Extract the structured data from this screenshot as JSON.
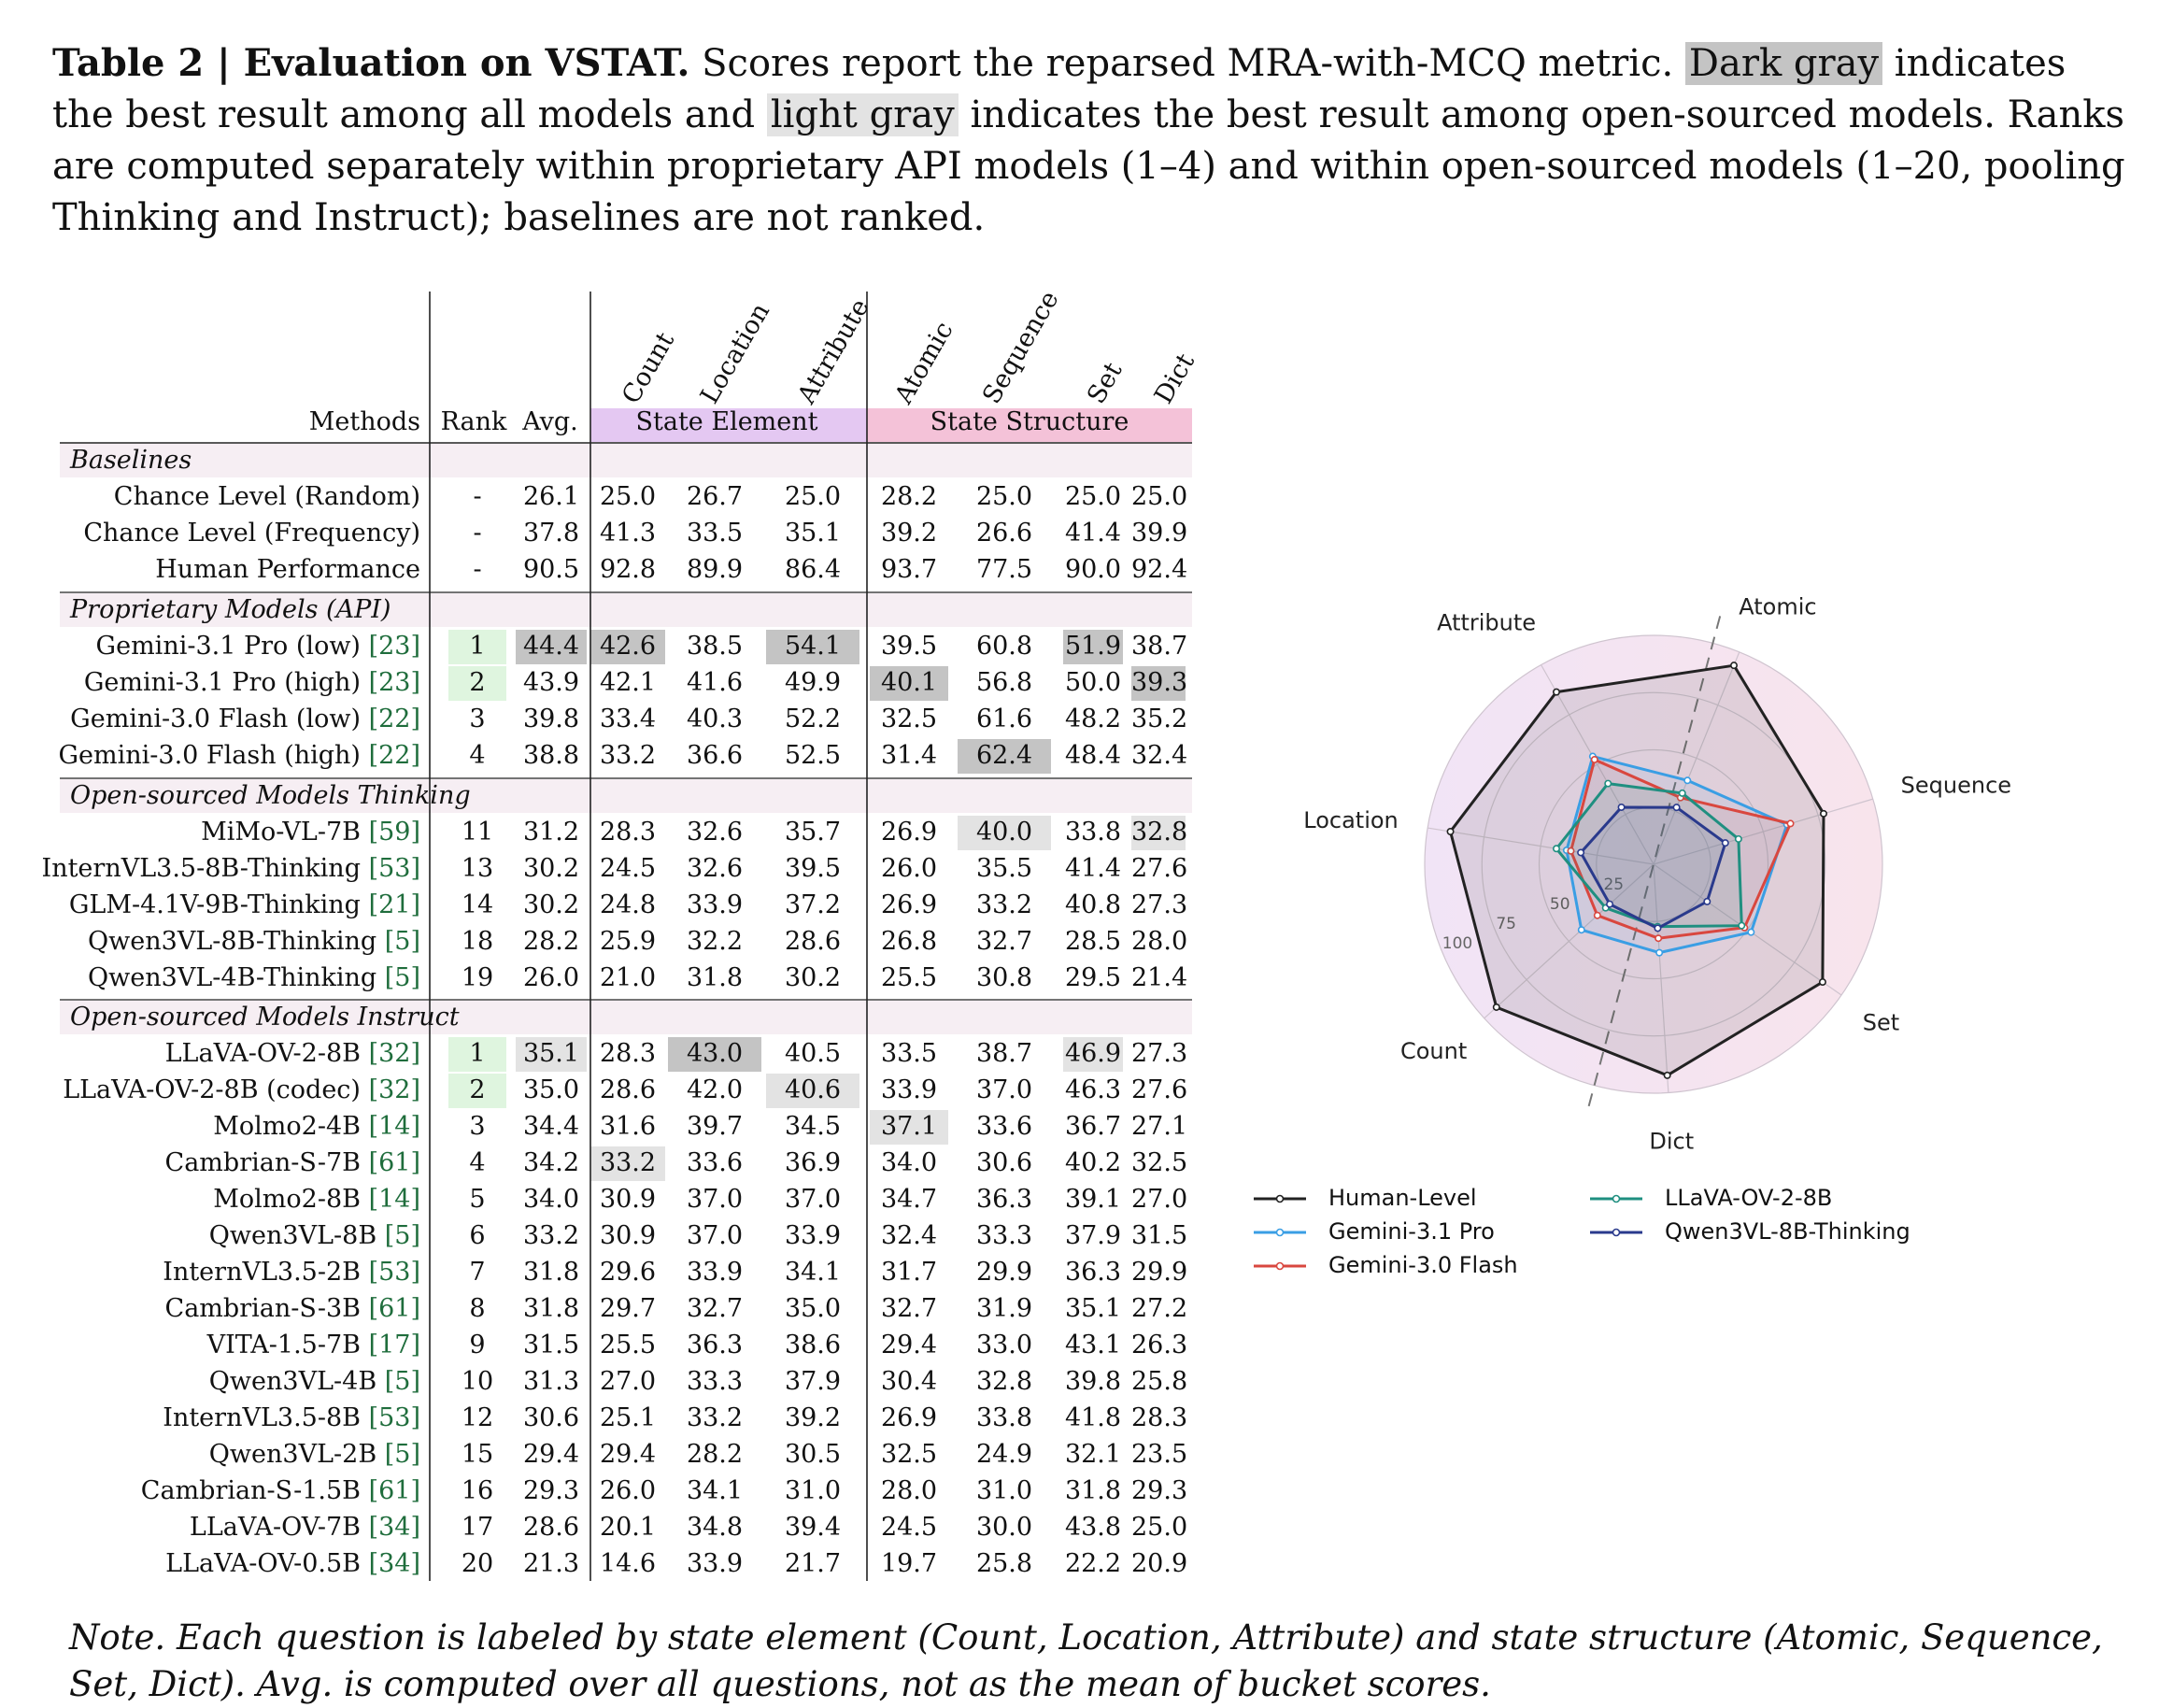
{
  "caption": {
    "label": "Table 2 | ",
    "title": "Evaluation on VSTAT.",
    "part1": " Scores report the reparsed MRA-with-MCQ metric. ",
    "dark_term": "Dark gray",
    "part2": " indicates the best result among all models and ",
    "light_term": "light gray",
    "part3": " indicates the best result among open-sourced models. Ranks are computed separately within proprietary API models (1–4) and within open-sourced models (1–20, pooling Thinking and Instruct); baselines are not ranked."
  },
  "table": {
    "header": {
      "methods": "Methods",
      "rank": "Rank",
      "avg": "Avg.",
      "group_element": "State Element",
      "group_structure": "State Structure",
      "element_columns": [
        "Count",
        "Location",
        "Attribute"
      ],
      "structure_columns": [
        "Atomic",
        "Sequence",
        "Set",
        "Dict"
      ]
    },
    "sections": [
      {
        "title": "Baselines",
        "rows": [
          {
            "method": "Chance Level (Random)",
            "cite": "",
            "rank": "-",
            "avg": "26.1",
            "scores": [
              "25.0",
              "26.7",
              "25.0",
              "28.2",
              "25.0",
              "25.0",
              "25.0"
            ]
          },
          {
            "method": "Chance Level (Frequency)",
            "cite": "",
            "rank": "-",
            "avg": "37.8",
            "scores": [
              "41.3",
              "33.5",
              "35.1",
              "39.2",
              "26.6",
              "41.4",
              "39.9"
            ]
          },
          {
            "method": "Human Performance",
            "cite": "",
            "rank": "-",
            "avg": "90.5",
            "scores": [
              "92.8",
              "89.9",
              "86.4",
              "93.7",
              "77.5",
              "90.0",
              "92.4"
            ]
          }
        ]
      },
      {
        "title": "Proprietary Models (API)",
        "rows": [
          {
            "method": "Gemini-3.1 Pro (low) ",
            "cite": "[23]",
            "rank": "1",
            "avg": "44.4",
            "scores": [
              "42.6",
              "38.5",
              "54.1",
              "39.5",
              "60.8",
              "51.9",
              "38.7"
            ]
          },
          {
            "method": "Gemini-3.1 Pro (high) ",
            "cite": "[23]",
            "rank": "2",
            "avg": "43.9",
            "scores": [
              "42.1",
              "41.6",
              "49.9",
              "40.1",
              "56.8",
              "50.0",
              "39.3"
            ]
          },
          {
            "method": "Gemini-3.0 Flash (low) ",
            "cite": "[22]",
            "rank": "3",
            "avg": "39.8",
            "scores": [
              "33.4",
              "40.3",
              "52.2",
              "32.5",
              "61.6",
              "48.2",
              "35.2"
            ]
          },
          {
            "method": "Gemini-3.0 Flash (high) ",
            "cite": "[22]",
            "rank": "4",
            "avg": "38.8",
            "scores": [
              "33.2",
              "36.6",
              "52.5",
              "31.4",
              "62.4",
              "48.4",
              "32.4"
            ]
          }
        ]
      },
      {
        "title": "Open-sourced Models Thinking",
        "rows": [
          {
            "method": "MiMo-VL-7B ",
            "cite": "[59]",
            "rank": "11",
            "avg": "31.2",
            "scores": [
              "28.3",
              "32.6",
              "35.7",
              "26.9",
              "40.0",
              "33.8",
              "32.8"
            ]
          },
          {
            "method": "InternVL3.5-8B-Thinking ",
            "cite": "[53]",
            "rank": "13",
            "avg": "30.2",
            "scores": [
              "24.5",
              "32.6",
              "39.5",
              "26.0",
              "35.5",
              "41.4",
              "27.6"
            ]
          },
          {
            "method": "GLM-4.1V-9B-Thinking ",
            "cite": "[21]",
            "rank": "14",
            "avg": "30.2",
            "scores": [
              "24.8",
              "33.9",
              "37.2",
              "26.9",
              "33.2",
              "40.8",
              "27.3"
            ]
          },
          {
            "method": "Qwen3VL-8B-Thinking ",
            "cite": "[5]",
            "rank": "18",
            "avg": "28.2",
            "scores": [
              "25.9",
              "32.2",
              "28.6",
              "26.8",
              "32.7",
              "28.5",
              "28.0"
            ]
          },
          {
            "method": "Qwen3VL-4B-Thinking ",
            "cite": "[5]",
            "rank": "19",
            "avg": "26.0",
            "scores": [
              "21.0",
              "31.8",
              "30.2",
              "25.5",
              "30.8",
              "29.5",
              "21.4"
            ]
          }
        ]
      },
      {
        "title": "Open-sourced Models Instruct",
        "rows": [
          {
            "method": "LLaVA-OV-2-8B ",
            "cite": "[32]",
            "rank": "1",
            "avg": "35.1",
            "scores": [
              "28.3",
              "43.0",
              "40.5",
              "33.5",
              "38.7",
              "46.9",
              "27.3"
            ]
          },
          {
            "method": "LLaVA-OV-2-8B (codec) ",
            "cite": "[32]",
            "rank": "2",
            "avg": "35.0",
            "scores": [
              "28.6",
              "42.0",
              "40.6",
              "33.9",
              "37.0",
              "46.3",
              "27.6"
            ]
          },
          {
            "method": "Molmo2-4B ",
            "cite": "[14]",
            "rank": "3",
            "avg": "34.4",
            "scores": [
              "31.6",
              "39.7",
              "34.5",
              "37.1",
              "33.6",
              "36.7",
              "27.1"
            ]
          },
          {
            "method": "Cambrian-S-7B ",
            "cite": "[61]",
            "rank": "4",
            "avg": "34.2",
            "scores": [
              "33.2",
              "33.6",
              "36.9",
              "34.0",
              "30.6",
              "40.2",
              "32.5"
            ]
          },
          {
            "method": "Molmo2-8B ",
            "cite": "[14]",
            "rank": "5",
            "avg": "34.0",
            "scores": [
              "30.9",
              "37.0",
              "37.0",
              "34.7",
              "36.3",
              "39.1",
              "27.0"
            ]
          },
          {
            "method": "Qwen3VL-8B ",
            "cite": "[5]",
            "rank": "6",
            "avg": "33.2",
            "scores": [
              "30.9",
              "37.0",
              "33.9",
              "32.4",
              "33.3",
              "37.9",
              "31.5"
            ]
          },
          {
            "method": "InternVL3.5-2B ",
            "cite": "[53]",
            "rank": "7",
            "avg": "31.8",
            "scores": [
              "29.6",
              "33.9",
              "34.1",
              "31.7",
              "29.9",
              "36.3",
              "29.9"
            ]
          },
          {
            "method": "Cambrian-S-3B ",
            "cite": "[61]",
            "rank": "8",
            "avg": "31.8",
            "scores": [
              "29.7",
              "32.7",
              "35.0",
              "32.7",
              "31.9",
              "35.1",
              "27.2"
            ]
          },
          {
            "method": "VITA-1.5-7B ",
            "cite": "[17]",
            "rank": "9",
            "avg": "31.5",
            "scores": [
              "25.5",
              "36.3",
              "38.6",
              "29.4",
              "33.0",
              "43.1",
              "26.3"
            ]
          },
          {
            "method": "Qwen3VL-4B ",
            "cite": "[5]",
            "rank": "10",
            "avg": "31.3",
            "scores": [
              "27.0",
              "33.3",
              "37.9",
              "30.4",
              "32.8",
              "39.8",
              "25.8"
            ]
          },
          {
            "method": "InternVL3.5-8B ",
            "cite": "[53]",
            "rank": "12",
            "avg": "30.6",
            "scores": [
              "25.1",
              "33.2",
              "39.2",
              "26.9",
              "33.8",
              "41.8",
              "28.3"
            ]
          },
          {
            "method": "Qwen3VL-2B ",
            "cite": "[5]",
            "rank": "15",
            "avg": "29.4",
            "scores": [
              "29.4",
              "28.2",
              "30.5",
              "32.5",
              "24.9",
              "32.1",
              "23.5"
            ]
          },
          {
            "method": "Cambrian-S-1.5B ",
            "cite": "[61]",
            "rank": "16",
            "avg": "29.3",
            "scores": [
              "26.0",
              "34.1",
              "31.0",
              "28.0",
              "31.0",
              "31.8",
              "29.3"
            ]
          },
          {
            "method": "LLaVA-OV-7B ",
            "cite": "[34]",
            "rank": "17",
            "avg": "28.6",
            "scores": [
              "20.1",
              "34.8",
              "39.4",
              "24.5",
              "30.0",
              "43.8",
              "25.0"
            ]
          },
          {
            "method": "LLaVA-OV-0.5B ",
            "cite": "[34]",
            "rank": "20",
            "avg": "21.3",
            "scores": [
              "14.6",
              "33.9",
              "21.7",
              "19.7",
              "25.8",
              "22.2",
              "20.9"
            ]
          }
        ]
      }
    ]
  },
  "chart_data": {
    "type": "radar",
    "axes": [
      "Atomic",
      "Sequence",
      "Set",
      "Dict",
      "Count",
      "Location",
      "Attribute"
    ],
    "rlim": [
      0,
      100
    ],
    "radial_ticks": [
      "25",
      "50",
      "75",
      "100"
    ],
    "series": [
      {
        "name": "Human-Level",
        "color": "#222222",
        "values": [
          93.7,
          77.5,
          90.0,
          92.4,
          92.8,
          89.9,
          86.4
        ]
      },
      {
        "name": "Gemini-3.1 Pro",
        "color": "#3a9ee4",
        "values": [
          39.5,
          60.8,
          51.9,
          38.7,
          42.6,
          38.5,
          54.1
        ]
      },
      {
        "name": "Gemini-3.0 Flash",
        "color": "#d9473f",
        "values": [
          31.4,
          62.4,
          48.4,
          32.4,
          33.2,
          36.6,
          52.5
        ]
      },
      {
        "name": "LLaVA-OV-2-8B",
        "color": "#1f8f80",
        "values": [
          33.5,
          38.7,
          46.9,
          27.3,
          28.3,
          43.0,
          40.5
        ]
      },
      {
        "name": "Qwen3VL-8B-Thinking",
        "color": "#2a3a8c",
        "values": [
          26.8,
          32.7,
          28.5,
          28.0,
          25.9,
          32.2,
          28.6
        ]
      }
    ],
    "legend": [
      "Human-Level",
      "LLaVA-OV-2-8B",
      "Gemini-3.1 Pro",
      "Qwen3VL-8B-Thinking",
      "Gemini-3.0 Flash"
    ]
  },
  "note": "Note. Each question is labeled by state element (Count, Location, Attribute) and state structure (Atomic, Sequence, Set, Dict). Avg. is computed over all questions, not as the mean of bucket scores.",
  "colors": {
    "dark_gray": "#c4c4c4",
    "light_gray": "#e3e3e3",
    "rank_green": "#dff5df",
    "state_element": "#e4c8f2",
    "state_structure": "#f4c2d8",
    "section_band": "#f6eef3",
    "citation": "#1f6d3c"
  }
}
